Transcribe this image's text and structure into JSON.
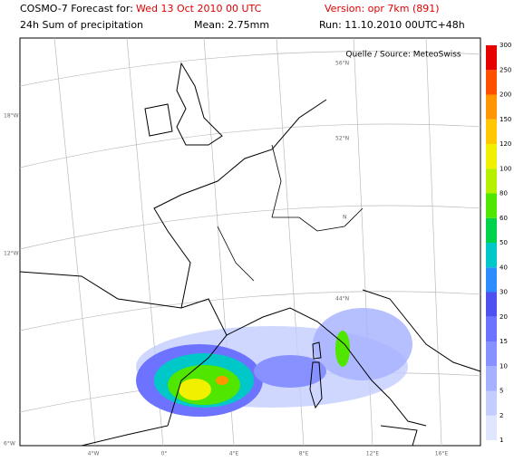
{
  "header": {
    "product": "COSMO-7 Forecast for:",
    "date": "Wed 13 Oct 2010 00 UTC",
    "version": "Version: opr 7km (891)",
    "field": "24h Sum of precipitation",
    "mean": "Mean: 2.75mm",
    "run": "Run: 11.10.2010 00UTC+48h"
  },
  "source": "Quelle / Source: MeteoSwiss",
  "grid_labels": {
    "left": [
      "18°W",
      "12°W",
      "6°W"
    ],
    "bottom": [
      "4°W",
      "0°",
      "4°E",
      "8°E",
      "12°E",
      "16°E"
    ],
    "inner": [
      "56°N",
      "52°N",
      "N",
      "44°N"
    ]
  },
  "colorbar": {
    "levels": [
      1,
      2,
      5,
      10,
      15,
      20,
      30,
      40,
      50,
      60,
      80,
      100,
      120,
      150,
      200,
      250,
      300
    ],
    "colors": [
      "#e1e6ff",
      "#c3cdff",
      "#a5b0ff",
      "#8791ff",
      "#6e73ff",
      "#4e50f0",
      "#2f8cff",
      "#00c8c8",
      "#00d24b",
      "#50e600",
      "#b4f000",
      "#f0f000",
      "#ffc800",
      "#ff9600",
      "#ff5000",
      "#e60000"
    ]
  }
}
